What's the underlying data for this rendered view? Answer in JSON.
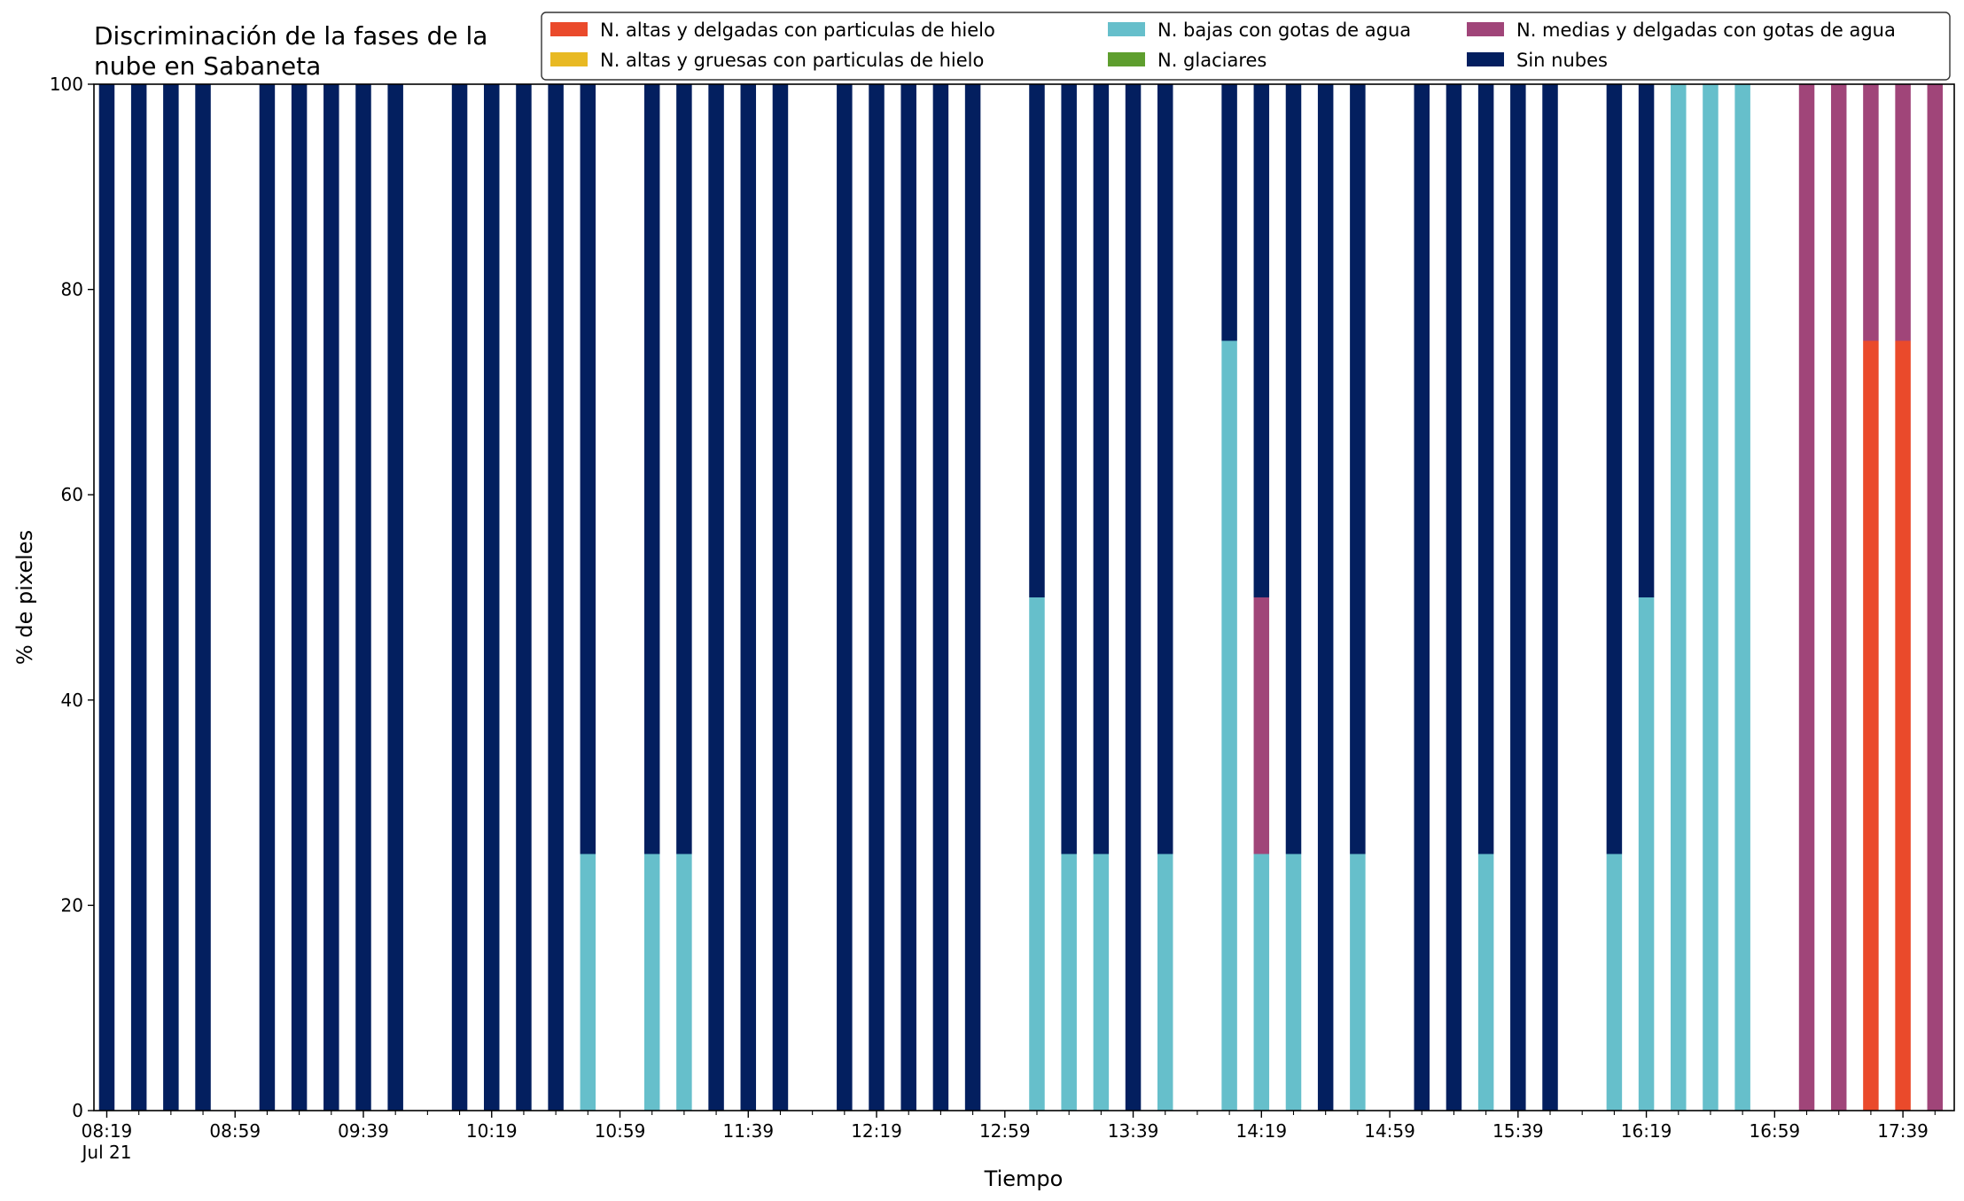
{
  "chart_data": {
    "type": "bar",
    "stacked": true,
    "title_lines": [
      "Discriminación de la fases de la",
      "nube en Sabaneta"
    ],
    "xlabel": "Tiempo",
    "ylabel": "% de pixeles",
    "ylim": [
      0,
      100
    ],
    "yticks": [
      0,
      20,
      40,
      60,
      80,
      100
    ],
    "grid": false,
    "legend_position": "top-right",
    "xlim_minutes": [
      "08:15",
      "17:55"
    ],
    "x_major_ticks": [
      "08:19",
      "08:59",
      "09:39",
      "10:19",
      "10:59",
      "11:39",
      "12:19",
      "12:59",
      "13:39",
      "14:19",
      "14:59",
      "15:39",
      "16:19",
      "16:59",
      "17:39"
    ],
    "x_date_label": "Jul 21",
    "x_minor_tick_interval_min": 10,
    "series": [
      {
        "key": "hielo_delgadas",
        "name": "N. altas y delgadas con particulas de hielo",
        "color": "#ea4a2b"
      },
      {
        "key": "hielo_gruesas",
        "name": "N. altas y gruesas con particulas de hielo",
        "color": "#e8b923"
      },
      {
        "key": "bajas_agua",
        "name": "N. bajas con gotas de agua",
        "color": "#66bfcb"
      },
      {
        "key": "glaciares",
        "name": "N. glaciares",
        "color": "#5e9e2e"
      },
      {
        "key": "medias_agua",
        "name": "N. medias y delgadas con gotas de agua",
        "color": "#a04579"
      },
      {
        "key": "sin_nubes",
        "name": "Sin nubes",
        "color": "#031f5f"
      }
    ],
    "legend_order": [
      "hielo_delgadas",
      "hielo_gruesas",
      "bajas_agua",
      "glaciares",
      "medias_agua",
      "sin_nubes"
    ],
    "bars": [
      {
        "time": "08:19",
        "values": {
          "sin_nubes": 100
        }
      },
      {
        "time": "08:29",
        "values": {
          "sin_nubes": 100
        }
      },
      {
        "time": "08:39",
        "values": {
          "sin_nubes": 100
        }
      },
      {
        "time": "08:49",
        "values": {
          "sin_nubes": 100
        }
      },
      {
        "time": "09:09",
        "values": {
          "sin_nubes": 100
        }
      },
      {
        "time": "09:19",
        "values": {
          "sin_nubes": 100
        }
      },
      {
        "time": "09:29",
        "values": {
          "sin_nubes": 100
        }
      },
      {
        "time": "09:39",
        "values": {
          "sin_nubes": 100
        }
      },
      {
        "time": "09:49",
        "values": {
          "sin_nubes": 100
        }
      },
      {
        "time": "10:09",
        "values": {
          "sin_nubes": 100
        }
      },
      {
        "time": "10:19",
        "values": {
          "sin_nubes": 100
        }
      },
      {
        "time": "10:29",
        "values": {
          "sin_nubes": 100
        }
      },
      {
        "time": "10:39",
        "values": {
          "sin_nubes": 100
        }
      },
      {
        "time": "10:49",
        "values": {
          "bajas_agua": 25,
          "sin_nubes": 75
        }
      },
      {
        "time": "11:09",
        "values": {
          "bajas_agua": 25,
          "sin_nubes": 75
        }
      },
      {
        "time": "11:19",
        "values": {
          "bajas_agua": 25,
          "sin_nubes": 75
        }
      },
      {
        "time": "11:29",
        "values": {
          "sin_nubes": 100
        }
      },
      {
        "time": "11:39",
        "values": {
          "sin_nubes": 100
        }
      },
      {
        "time": "11:49",
        "values": {
          "sin_nubes": 100
        }
      },
      {
        "time": "12:09",
        "values": {
          "sin_nubes": 100
        }
      },
      {
        "time": "12:19",
        "values": {
          "sin_nubes": 100
        }
      },
      {
        "time": "12:29",
        "values": {
          "sin_nubes": 100
        }
      },
      {
        "time": "12:39",
        "values": {
          "sin_nubes": 100
        }
      },
      {
        "time": "12:49",
        "values": {
          "sin_nubes": 100
        }
      },
      {
        "time": "13:09",
        "values": {
          "bajas_agua": 50,
          "sin_nubes": 50
        }
      },
      {
        "time": "13:19",
        "values": {
          "bajas_agua": 25,
          "sin_nubes": 75
        }
      },
      {
        "time": "13:29",
        "values": {
          "bajas_agua": 25,
          "sin_nubes": 75
        }
      },
      {
        "time": "13:39",
        "values": {
          "sin_nubes": 100
        }
      },
      {
        "time": "13:49",
        "values": {
          "bajas_agua": 25,
          "sin_nubes": 75
        }
      },
      {
        "time": "14:09",
        "values": {
          "bajas_agua": 75,
          "sin_nubes": 25
        }
      },
      {
        "time": "14:19",
        "values": {
          "bajas_agua": 25,
          "medias_agua": 25,
          "sin_nubes": 50
        }
      },
      {
        "time": "14:29",
        "values": {
          "bajas_agua": 25,
          "sin_nubes": 75
        }
      },
      {
        "time": "14:39",
        "values": {
          "sin_nubes": 100
        }
      },
      {
        "time": "14:49",
        "values": {
          "bajas_agua": 25,
          "sin_nubes": 75
        }
      },
      {
        "time": "15:09",
        "values": {
          "sin_nubes": 100
        }
      },
      {
        "time": "15:19",
        "values": {
          "sin_nubes": 100
        }
      },
      {
        "time": "15:29",
        "values": {
          "bajas_agua": 25,
          "sin_nubes": 75
        }
      },
      {
        "time": "15:39",
        "values": {
          "sin_nubes": 100
        }
      },
      {
        "time": "15:49",
        "values": {
          "sin_nubes": 100
        }
      },
      {
        "time": "16:09",
        "values": {
          "bajas_agua": 25,
          "sin_nubes": 75
        }
      },
      {
        "time": "16:19",
        "values": {
          "bajas_agua": 50,
          "sin_nubes": 50
        }
      },
      {
        "time": "16:29",
        "values": {
          "bajas_agua": 100
        }
      },
      {
        "time": "16:39",
        "values": {
          "bajas_agua": 100
        }
      },
      {
        "time": "16:49",
        "values": {
          "bajas_agua": 100
        }
      },
      {
        "time": "17:09",
        "values": {
          "medias_agua": 100
        }
      },
      {
        "time": "17:19",
        "values": {
          "medias_agua": 100
        }
      },
      {
        "time": "17:29",
        "values": {
          "hielo_delgadas": 75,
          "medias_agua": 25
        }
      },
      {
        "time": "17:39",
        "values": {
          "hielo_delgadas": 75,
          "medias_agua": 25
        }
      },
      {
        "time": "17:49",
        "values": {
          "medias_agua": 100
        }
      }
    ]
  }
}
